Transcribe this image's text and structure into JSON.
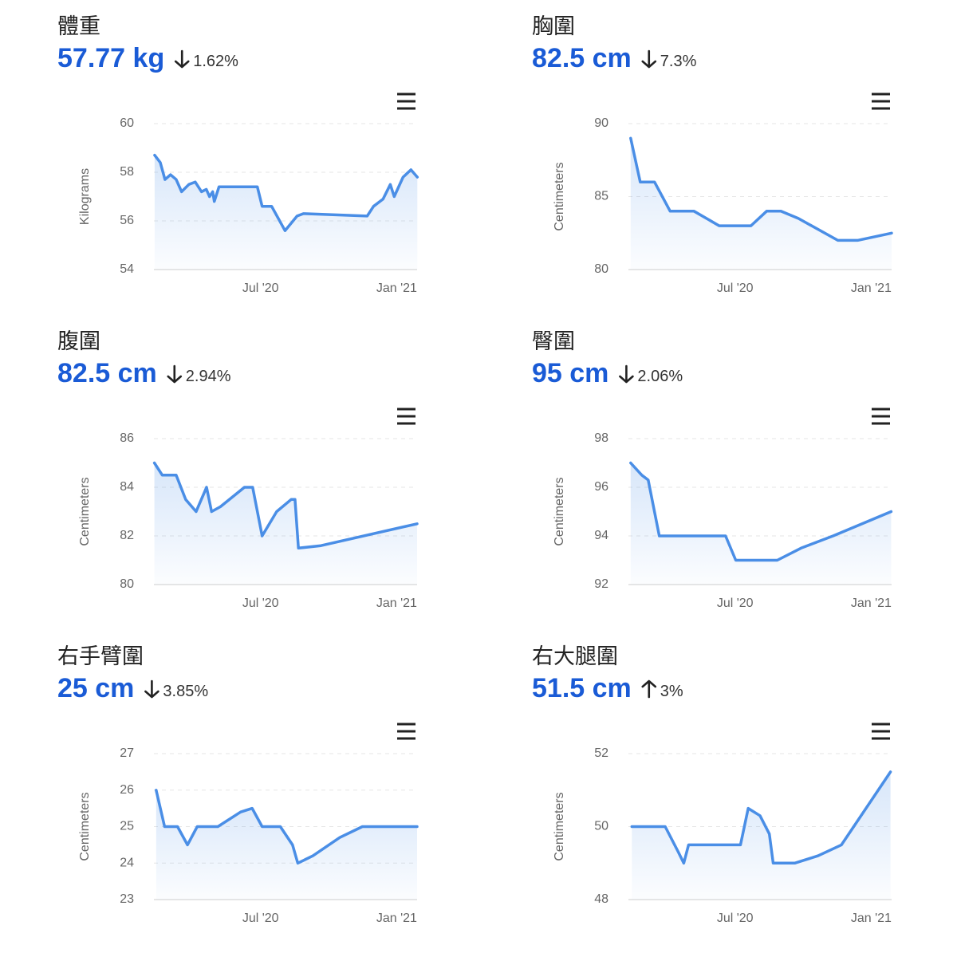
{
  "chart_data": [
    {
      "type": "line",
      "title": "體重",
      "headline": "57.77 kg",
      "change": "1.62%",
      "direction": "down",
      "y_label": "Kilograms",
      "color": "#4a8ee6",
      "x": [
        1.33,
        1.58,
        1.79,
        2.03,
        2.28,
        2.52,
        2.84,
        3.12,
        3.4,
        3.61,
        3.75,
        3.89,
        3.96,
        4.17,
        5.86,
        6.07,
        6.49,
        7.08,
        7.61,
        7.89,
        10.7,
        10.98,
        11.4,
        11.72,
        11.89,
        12.28,
        12.63,
        12.91
      ],
      "values": [
        58.7,
        58.4,
        57.7,
        57.9,
        57.7,
        57.2,
        57.5,
        57.6,
        57.2,
        57.3,
        57.0,
        57.2,
        56.8,
        57.4,
        57.4,
        56.6,
        56.6,
        55.6,
        56.2,
        56.3,
        56.2,
        56.6,
        56.9,
        57.5,
        57.0,
        57.8,
        58.1,
        57.8
      ],
      "xlim": [
        1.3,
        12.9
      ],
      "xticks": [
        {
          "value": 6,
          "label": "Jul '20"
        },
        {
          "value": 12,
          "label": "Jan '21"
        }
      ],
      "ylim": [
        54,
        60
      ],
      "yticks": [
        54,
        56,
        58,
        60
      ],
      "grid": true
    },
    {
      "type": "line",
      "title": "胸圍",
      "headline": "82.5 cm",
      "change": "7.3%",
      "direction": "down",
      "y_label": "Centimeters",
      "color": "#4a8ee6",
      "x": [
        1.4,
        1.82,
        2.45,
        3.14,
        4.19,
        5.3,
        6.7,
        7.39,
        8.02,
        8.79,
        10.53,
        11.4,
        12.9
      ],
      "values": [
        89,
        86,
        86,
        84,
        84,
        83,
        83,
        84,
        84,
        83.5,
        82,
        82,
        82.5
      ],
      "xlim": [
        1.3,
        12.9
      ],
      "xticks": [
        {
          "value": 6,
          "label": "Jul '20"
        },
        {
          "value": 12,
          "label": "Jan '21"
        }
      ],
      "ylim": [
        80,
        90
      ],
      "yticks": [
        80,
        85,
        90
      ],
      "grid": true
    },
    {
      "type": "line",
      "title": "腹圍",
      "headline": "82.5 cm",
      "change": "2.94%",
      "direction": "down",
      "y_label": "Centimeters",
      "color": "#4a8ee6",
      "x": [
        1.32,
        1.67,
        2.28,
        2.7,
        3.16,
        3.62,
        3.84,
        4.23,
        5.29,
        5.65,
        6.07,
        6.71,
        7.35,
        7.52,
        7.67,
        8.66,
        12.9
      ],
      "values": [
        85,
        84.5,
        84.5,
        83.5,
        83,
        84,
        83,
        83.2,
        84,
        84,
        82,
        83,
        83.5,
        83.5,
        81.5,
        81.6,
        82.5
      ],
      "xlim": [
        1.3,
        12.9
      ],
      "xticks": [
        {
          "value": 6,
          "label": "Jul '20"
        },
        {
          "value": 12,
          "label": "Jan '21"
        }
      ],
      "ylim": [
        80,
        86
      ],
      "yticks": [
        80,
        82,
        84,
        86
      ],
      "grid": true
    },
    {
      "type": "line",
      "title": "臀圍",
      "headline": "95 cm",
      "change": "2.06%",
      "direction": "down",
      "y_label": "Centimeters",
      "color": "#4a8ee6",
      "x": [
        1.4,
        1.89,
        2.17,
        2.66,
        5.58,
        6.03,
        7.86,
        8.91,
        10.32,
        12.88
      ],
      "values": [
        97,
        96.5,
        96.3,
        94,
        94,
        93,
        93,
        93.5,
        94,
        95
      ],
      "xlim": [
        1.3,
        12.9
      ],
      "xticks": [
        {
          "value": 6,
          "label": "Jul '20"
        },
        {
          "value": 12,
          "label": "Jan '21"
        }
      ],
      "ylim": [
        92,
        98
      ],
      "yticks": [
        92,
        94,
        96,
        98
      ],
      "grid": true
    },
    {
      "type": "line",
      "title": "右手臂圍",
      "headline": "25 cm",
      "change": "3.85%",
      "direction": "down",
      "y_label": "Centimeters",
      "color": "#4a8ee6",
      "x": [
        1.4,
        1.77,
        2.34,
        2.78,
        3.21,
        4.12,
        5.12,
        5.63,
        6.07,
        6.87,
        7.41,
        7.64,
        8.31,
        9.49,
        10.49,
        12.9
      ],
      "values": [
        26,
        25,
        25,
        24.5,
        25,
        25,
        25.4,
        25.5,
        25,
        25,
        24.5,
        24,
        24.2,
        24.7,
        25,
        25
      ],
      "xlim": [
        1.3,
        12.9
      ],
      "xticks": [
        {
          "value": 6,
          "label": "Jul '20"
        },
        {
          "value": 12,
          "label": "Jan '21"
        }
      ],
      "ylim": [
        23,
        27
      ],
      "yticks": [
        23,
        24,
        25,
        26,
        27
      ],
      "grid": true
    },
    {
      "type": "line",
      "title": "右大腿圍",
      "headline": "51.5 cm",
      "change": "3%",
      "direction": "up",
      "y_label": "Centimeters",
      "color": "#4a8ee6",
      "x": [
        1.45,
        2.92,
        3.5,
        3.74,
        3.95,
        6.24,
        6.58,
        7.1,
        7.51,
        7.68,
        8.63,
        9.66,
        10.69,
        12.85
      ],
      "values": [
        50,
        50,
        49.3,
        49,
        49.5,
        49.5,
        50.5,
        50.3,
        49.8,
        49,
        49,
        49.2,
        49.5,
        51.5
      ],
      "xlim": [
        1.3,
        12.9
      ],
      "xticks": [
        {
          "value": 6,
          "label": "Jul '20"
        },
        {
          "value": 12,
          "label": "Jan '21"
        }
      ],
      "ylim": [
        48,
        52
      ],
      "yticks": [
        48,
        50,
        52
      ],
      "grid": true
    }
  ]
}
